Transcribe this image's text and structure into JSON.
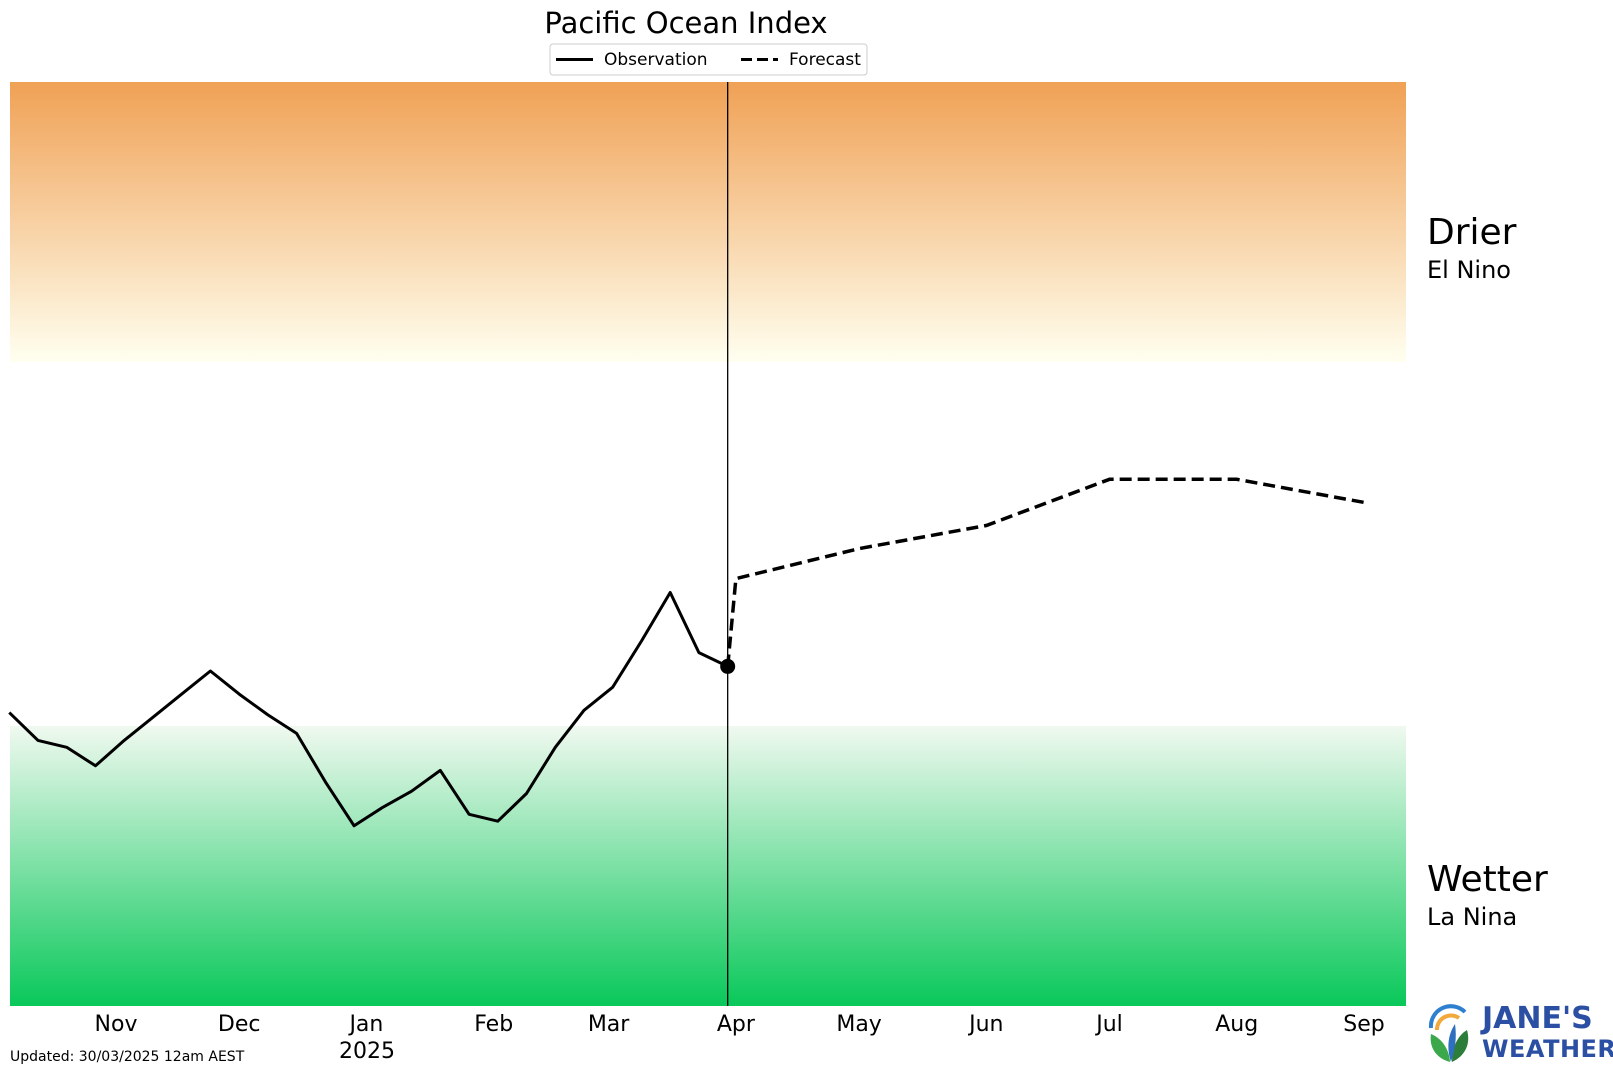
{
  "chart_data": {
    "type": "line",
    "title": "Pacific Ocean Index",
    "legend": {
      "placement": "top-center",
      "entries": [
        {
          "label": "Observation",
          "style": "solid"
        },
        {
          "label": "Forecast",
          "style": "dashed"
        }
      ]
    },
    "x_tick_labels": [
      "Nov",
      "Dec",
      "Jan",
      "Feb",
      "Mar",
      "Apr",
      "May",
      "Jun",
      "Jul",
      "Aug",
      "Sep"
    ],
    "year_label": "2025",
    "zones": {
      "upper": {
        "label": "Drier",
        "sublabel": "El Nino",
        "color": "#f0a155"
      },
      "lower": {
        "label": "Wetter",
        "sublabel": "La Nina",
        "color": "#09c85a"
      }
    },
    "ylim": [
      -2.0,
      2.0
    ],
    "zone_thresholds": {
      "upper": 0.8,
      "lower": -0.8
    },
    "current_date": "2025-03-30",
    "series": [
      {
        "name": "Observation",
        "style": "solid",
        "x": [
          "2024-10-06",
          "2024-10-13",
          "2024-10-20",
          "2024-10-27",
          "2024-11-03",
          "2024-11-10",
          "2024-11-17",
          "2024-11-24",
          "2024-12-01",
          "2024-12-08",
          "2024-12-15",
          "2024-12-22",
          "2024-12-29",
          "2025-01-05",
          "2025-01-12",
          "2025-01-19",
          "2025-01-26",
          "2025-02-02",
          "2025-02-09",
          "2025-02-16",
          "2025-02-23",
          "2025-03-02",
          "2025-03-09",
          "2025-03-16",
          "2025-03-23",
          "2025-03-30"
        ],
        "y": [
          -0.73,
          -0.85,
          -0.88,
          -0.96,
          -0.85,
          -0.75,
          -0.65,
          -0.55,
          -0.65,
          -0.74,
          -0.82,
          -1.03,
          -1.22,
          -1.14,
          -1.07,
          -0.98,
          -1.17,
          -1.2,
          -1.08,
          -0.88,
          -0.72,
          -0.62,
          -0.42,
          -0.21,
          -0.47,
          -0.53
        ]
      },
      {
        "name": "Forecast",
        "style": "dashed",
        "x": [
          "2025-03-30",
          "2025-04-01",
          "2025-05-01",
          "2025-06-01",
          "2025-07-01",
          "2025-08-01",
          "2025-09-01"
        ],
        "y": [
          -0.53,
          -0.15,
          -0.02,
          0.08,
          0.28,
          0.28,
          0.18
        ]
      }
    ]
  },
  "footer": {
    "updated": "Updated: 30/03/2025 12am AEST"
  },
  "logo": {
    "line1": "JANE'S",
    "line2": "WEATHER",
    "color": "#2a4fa3"
  }
}
